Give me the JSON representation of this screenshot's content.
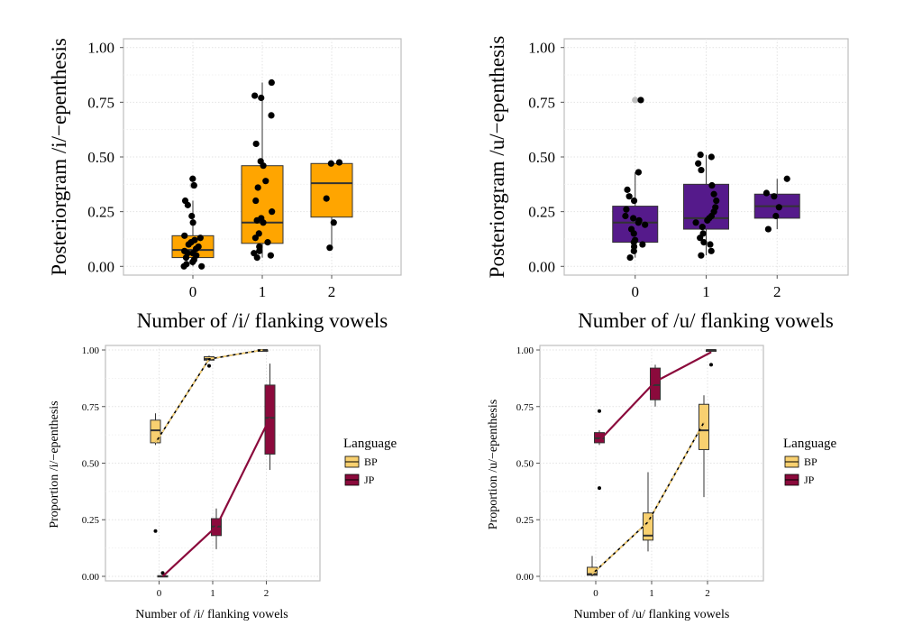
{
  "colors": {
    "orange": "#FFA500",
    "purple": "#551A8B",
    "bp": "#F8D070",
    "jp": "#8B0A3C",
    "outlier_grey": "#BEBEBE",
    "grid": "#EBEBEB",
    "panel_border": "#BDBDBD"
  },
  "chart_data": [
    {
      "type": "box",
      "xlabel": "Number of /i/ flanking vowels",
      "ylabel": "Posteriorgram /i/−epenthesis",
      "categories": [
        "0",
        "1",
        "2"
      ],
      "ylim": [
        -0.04,
        1.04
      ],
      "yticks": [
        "0.00",
        "0.25",
        "0.50",
        "0.75",
        "1.00"
      ],
      "grid": "dotted",
      "fill_color": "#FFA500",
      "boxes": [
        {
          "category": "0",
          "min": 0.0,
          "q1": 0.04,
          "median": 0.075,
          "q3": 0.14,
          "max": 0.3,
          "outliers": [
            0.4,
            0.37
          ]
        },
        {
          "category": "1",
          "min": 0.04,
          "q1": 0.105,
          "median": 0.2,
          "q3": 0.46,
          "max": 0.84,
          "outliers": []
        },
        {
          "category": "2",
          "min": 0.085,
          "q1": 0.225,
          "median": 0.38,
          "q3": 0.47,
          "max": 0.475,
          "outliers": []
        }
      ],
      "points": [
        {
          "category": "0",
          "values": [
            0.4,
            0.37,
            0.3,
            0.28,
            0.23,
            0.2,
            0.14,
            0.13,
            0.12,
            0.11,
            0.1,
            0.09,
            0.08,
            0.07,
            0.06,
            0.06,
            0.05,
            0.04,
            0.03,
            0.02,
            0.01,
            0.0,
            0.0
          ]
        },
        {
          "category": "1",
          "values": [
            0.84,
            0.78,
            0.77,
            0.69,
            0.56,
            0.48,
            0.46,
            0.39,
            0.36,
            0.3,
            0.25,
            0.22,
            0.21,
            0.2,
            0.15,
            0.13,
            0.11,
            0.09,
            0.07,
            0.06,
            0.05,
            0.04
          ]
        },
        {
          "category": "2",
          "values": [
            0.475,
            0.47,
            0.31,
            0.2,
            0.085
          ]
        }
      ]
    },
    {
      "type": "box",
      "xlabel": "Number of /u/ flanking vowels",
      "ylabel": "Posteriorgram /u/−epenthesis",
      "categories": [
        "0",
        "1",
        "2"
      ],
      "ylim": [
        -0.04,
        1.04
      ],
      "yticks": [
        "0.00",
        "0.25",
        "0.50",
        "0.75",
        "1.00"
      ],
      "grid": "dotted",
      "fill_color": "#551A8B",
      "boxes": [
        {
          "category": "0",
          "min": 0.04,
          "q1": 0.11,
          "median": 0.2,
          "q3": 0.275,
          "max": 0.43,
          "outliers": [
            0.76
          ]
        },
        {
          "category": "1",
          "min": 0.05,
          "q1": 0.17,
          "median": 0.22,
          "q3": 0.375,
          "max": 0.51,
          "outliers": []
        },
        {
          "category": "2",
          "min": 0.17,
          "q1": 0.22,
          "median": 0.275,
          "q3": 0.33,
          "max": 0.4,
          "outliers": []
        }
      ],
      "points": [
        {
          "category": "0",
          "values": [
            0.76,
            0.43,
            0.35,
            0.32,
            0.3,
            0.26,
            0.23,
            0.22,
            0.21,
            0.2,
            0.19,
            0.17,
            0.15,
            0.12,
            0.11,
            0.1,
            0.09,
            0.07,
            0.04
          ]
        },
        {
          "category": "1",
          "values": [
            0.51,
            0.5,
            0.47,
            0.44,
            0.37,
            0.33,
            0.3,
            0.27,
            0.25,
            0.23,
            0.22,
            0.21,
            0.2,
            0.18,
            0.15,
            0.13,
            0.11,
            0.1,
            0.07,
            0.05
          ]
        },
        {
          "category": "2",
          "values": [
            0.4,
            0.335,
            0.32,
            0.27,
            0.23,
            0.17
          ]
        }
      ]
    },
    {
      "type": "box",
      "xlabel": "Number of /i/ flanking vowels",
      "ylabel": "Proportion /i/−epenthesis",
      "categories": [
        "0",
        "1",
        "2"
      ],
      "ylim": [
        -0.02,
        1.02
      ],
      "yticks": [
        "0.00",
        "0.25",
        "0.50",
        "0.75",
        "1.00"
      ],
      "grid": "dotted",
      "legend": {
        "title": "Language",
        "position": "right"
      },
      "series": [
        {
          "name": "BP",
          "color": "#F8D070",
          "line_style": "dashed",
          "boxes": [
            {
              "category": "0",
              "min": 0.58,
              "q1": 0.59,
              "median": 0.645,
              "q3": 0.69,
              "max": 0.72,
              "outliers": [
                0.2
              ]
            },
            {
              "category": "1",
              "min": 0.95,
              "q1": 0.955,
              "median": 0.96,
              "q3": 0.97,
              "max": 0.975,
              "outliers": [
                0.93
              ]
            },
            {
              "category": "2",
              "min": 0.995,
              "q1": 0.997,
              "median": 1.0,
              "q3": 1.0,
              "max": 1.0,
              "outliers": []
            }
          ],
          "line": [
            0.59,
            0.96,
            1.0
          ]
        },
        {
          "name": "JP",
          "color": "#8B0A3C",
          "line_style": "solid",
          "boxes": [
            {
              "category": "0",
              "min": 0.0,
              "q1": 0.0,
              "median": 0.0,
              "q3": 0.003,
              "max": 0.005,
              "outliers": [
                0.015
              ]
            },
            {
              "category": "1",
              "min": 0.12,
              "q1": 0.18,
              "median": 0.22,
              "q3": 0.255,
              "max": 0.3,
              "outliers": []
            },
            {
              "category": "2",
              "min": 0.47,
              "q1": 0.54,
              "median": 0.7,
              "q3": 0.845,
              "max": 0.94,
              "outliers": []
            }
          ],
          "line": [
            0.0,
            0.22,
            0.7
          ]
        }
      ]
    },
    {
      "type": "box",
      "xlabel": "Number of /u/ flanking vowels",
      "ylabel": "Proportion /u/−epenthesis",
      "categories": [
        "0",
        "1",
        "2"
      ],
      "ylim": [
        -0.02,
        1.02
      ],
      "yticks": [
        "0.00",
        "0.25",
        "0.50",
        "0.75",
        "1.00"
      ],
      "grid": "dotted",
      "legend": {
        "title": "Language",
        "position": "right"
      },
      "series": [
        {
          "name": "BP",
          "color": "#F8D070",
          "line_style": "dashed",
          "boxes": [
            {
              "category": "0",
              "min": 0.0,
              "q1": 0.005,
              "median": 0.01,
              "q3": 0.04,
              "max": 0.09,
              "outliers": []
            },
            {
              "category": "1",
              "min": 0.11,
              "q1": 0.16,
              "median": 0.18,
              "q3": 0.28,
              "max": 0.46,
              "outliers": []
            },
            {
              "category": "2",
              "min": 0.35,
              "q1": 0.56,
              "median": 0.645,
              "q3": 0.76,
              "max": 0.8,
              "outliers": []
            }
          ],
          "line": [
            0.01,
            0.24,
            0.68
          ]
        },
        {
          "name": "JP",
          "color": "#8B0A3C",
          "line_style": "solid",
          "boxes": [
            {
              "category": "0",
              "min": 0.58,
              "q1": 0.59,
              "median": 0.61,
              "q3": 0.635,
              "max": 0.645,
              "outliers": [
                0.73,
                0.39
              ]
            },
            {
              "category": "1",
              "min": 0.75,
              "q1": 0.78,
              "median": 0.845,
              "q3": 0.92,
              "max": 0.935,
              "outliers": []
            },
            {
              "category": "2",
              "min": 0.99,
              "q1": 0.995,
              "median": 1.0,
              "q3": 1.0,
              "max": 1.0,
              "outliers": [
                0.935
              ]
            }
          ],
          "line": [
            0.6,
            0.86,
            0.99
          ]
        }
      ]
    }
  ]
}
